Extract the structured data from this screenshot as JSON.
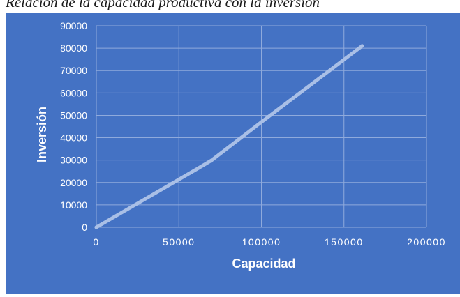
{
  "caption": "Relación de la capacidad productiva con la inversión",
  "colors": {
    "background": "#4472C4",
    "gridline": "#8FAADC",
    "line": "#A9BFE6",
    "text": "#FFFFFF"
  },
  "chart_data": {
    "type": "line",
    "title": "",
    "xlabel": "Capacidad",
    "ylabel": "Inversión",
    "xlim": [
      0,
      200000
    ],
    "ylim": [
      0,
      90000
    ],
    "x_ticks": [
      "0",
      "50000",
      "100000",
      "150000",
      "200000"
    ],
    "y_ticks": [
      "0",
      "10000",
      "20000",
      "30000",
      "40000",
      "50000",
      "60000",
      "70000",
      "80000",
      "90000"
    ],
    "grid": true,
    "legend": "none",
    "series": [
      {
        "x": [
          0,
          62000,
          70000,
          100000,
          161000
        ],
        "y": [
          0,
          26500,
          30000,
          47000,
          81000
        ]
      }
    ]
  }
}
